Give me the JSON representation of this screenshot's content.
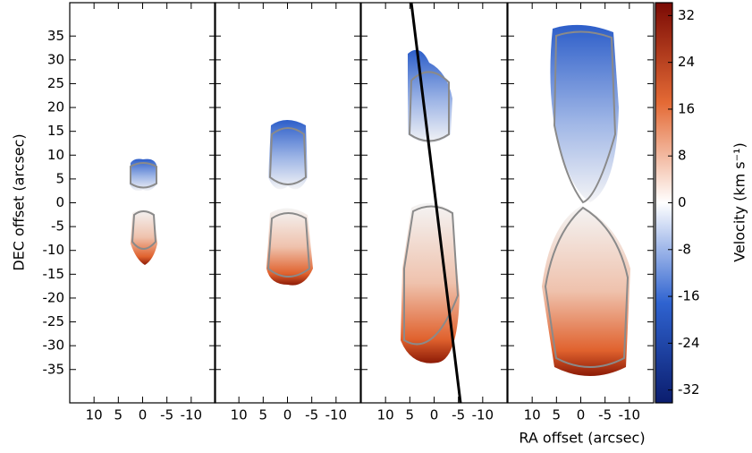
{
  "chart_data": {
    "type": "image",
    "xlabel": "RA offset (arcsec)",
    "ylabel": "DEC offset (arcsec)",
    "xlim": [
      15,
      -15
    ],
    "ylim": [
      -42,
      42
    ],
    "yticks": [
      35,
      30,
      25,
      20,
      15,
      10,
      5,
      0,
      -5,
      -10,
      -15,
      -20,
      -25,
      -30,
      -35
    ],
    "panels": [
      {
        "xticks": [
          10,
          5,
          0,
          -5,
          -10
        ]
      },
      {
        "xticks": [
          10,
          5,
          0,
          -5,
          -10
        ]
      },
      {
        "xticks": [
          10,
          5,
          0,
          -5,
          -10
        ]
      },
      {
        "xticks": [
          10,
          5,
          0,
          -5,
          -10
        ]
      }
    ],
    "colorbar": {
      "label": "Velocity (km s⁻¹)",
      "clim": [
        -34.2,
        34.2
      ],
      "ticks": [
        32,
        24,
        16,
        8,
        0,
        -8,
        -16,
        -24,
        -32
      ],
      "colors": [
        "#0b1d6e",
        "#2f63d0",
        "#ffffff",
        "#e46a35",
        "#7a0a04"
      ]
    }
  }
}
